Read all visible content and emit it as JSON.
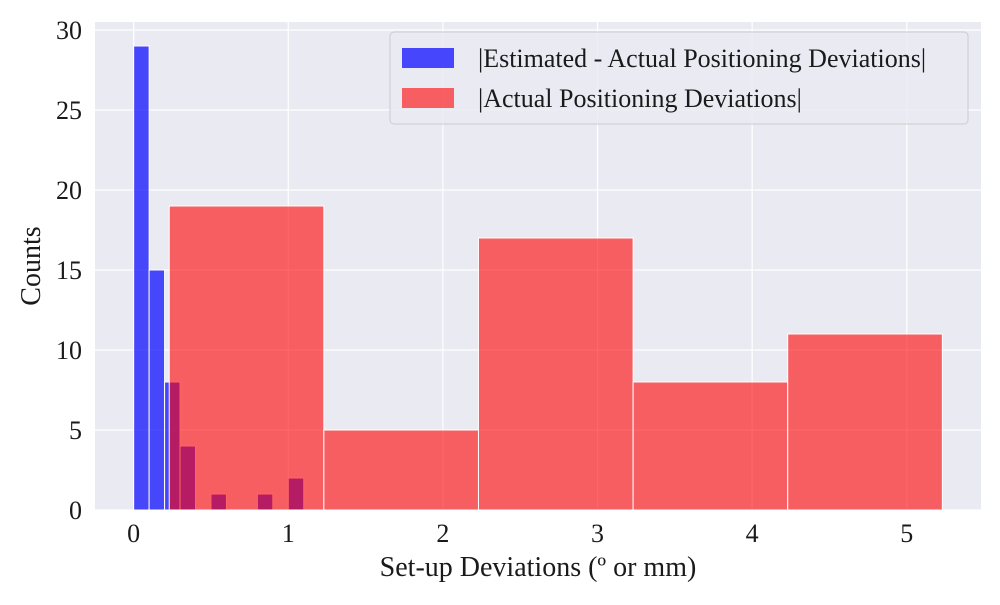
{
  "chart_data": {
    "type": "bar",
    "title": "",
    "xlabel": "Set-up Deviations (º or mm)",
    "ylabel": "Counts",
    "xlim": [
      -0.25,
      5.48
    ],
    "ylim": [
      0,
      30.5
    ],
    "x_ticks": [
      0,
      1,
      2,
      3,
      4,
      5
    ],
    "y_ticks": [
      0,
      5,
      10,
      15,
      20,
      25,
      30
    ],
    "grid": true,
    "legend_position": "top-right",
    "series": [
      {
        "name": "|Estimated - Actual Positioning Deviations|",
        "color": "#0000ff",
        "opacity": 0.7,
        "bins": [
          {
            "x0": 0.0,
            "x1": 0.1,
            "value": 29
          },
          {
            "x0": 0.1,
            "x1": 0.2,
            "value": 15
          },
          {
            "x0": 0.2,
            "x1": 0.3,
            "value": 8
          },
          {
            "x0": 0.3,
            "x1": 0.4,
            "value": 4
          },
          {
            "x0": 0.4,
            "x1": 0.5,
            "value": 0
          },
          {
            "x0": 0.5,
            "x1": 0.6,
            "value": 1
          },
          {
            "x0": 0.6,
            "x1": 0.7,
            "value": 0
          },
          {
            "x0": 0.7,
            "x1": 0.8,
            "value": 0
          },
          {
            "x0": 0.8,
            "x1": 0.9,
            "value": 1
          },
          {
            "x0": 0.9,
            "x1": 1.0,
            "value": 0
          },
          {
            "x0": 1.0,
            "x1": 1.1,
            "value": 2
          }
        ]
      },
      {
        "name": "|Actual Positioning Deviations|",
        "color": "#ff0000",
        "opacity": 0.6,
        "bins": [
          {
            "x0": 0.23,
            "x1": 1.23,
            "value": 19
          },
          {
            "x0": 1.23,
            "x1": 2.23,
            "value": 5
          },
          {
            "x0": 2.23,
            "x1": 3.23,
            "value": 17
          },
          {
            "x0": 3.23,
            "x1": 4.23,
            "value": 8
          },
          {
            "x0": 4.23,
            "x1": 5.23,
            "value": 11
          }
        ]
      }
    ]
  }
}
